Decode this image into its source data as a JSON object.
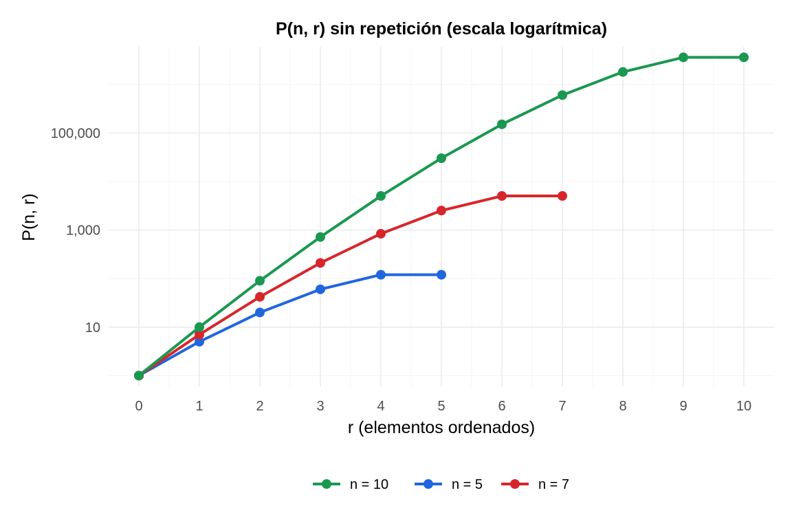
{
  "chart_data": {
    "type": "line",
    "title": "P(n, r) sin repetición (escala logarítmica)",
    "xlabel": "r (elementos ordenados)",
    "ylabel": "P(n, r)",
    "x_ticks": [
      0,
      1,
      2,
      3,
      4,
      5,
      6,
      7,
      8,
      9,
      10
    ],
    "y_scale": "log10",
    "y_ticks": [
      10,
      1000,
      100000
    ],
    "y_tick_labels": [
      "10",
      "1,000",
      "100,000"
    ],
    "xlim": [
      -0.5,
      10.5
    ],
    "ylim": [
      0.6,
      6000000
    ],
    "grid": true,
    "legend_position": "bottom",
    "series": [
      {
        "name": "n = 10",
        "color": "#1a9850",
        "x": [
          0,
          1,
          2,
          3,
          4,
          5,
          6,
          7,
          8,
          9,
          10
        ],
        "y": [
          1,
          10,
          90,
          720,
          5040,
          30240,
          151200,
          604800,
          1814400,
          3628800,
          3628800
        ]
      },
      {
        "name": "n = 5",
        "color": "#2166e0",
        "x": [
          0,
          1,
          2,
          3,
          4,
          5
        ],
        "y": [
          1,
          5,
          20,
          60,
          120,
          120
        ]
      },
      {
        "name": "n = 7",
        "color": "#d7262b",
        "x": [
          0,
          1,
          2,
          3,
          4,
          5,
          6,
          7
        ],
        "y": [
          1,
          7,
          42,
          210,
          840,
          2520,
          5040,
          5040
        ]
      }
    ]
  }
}
